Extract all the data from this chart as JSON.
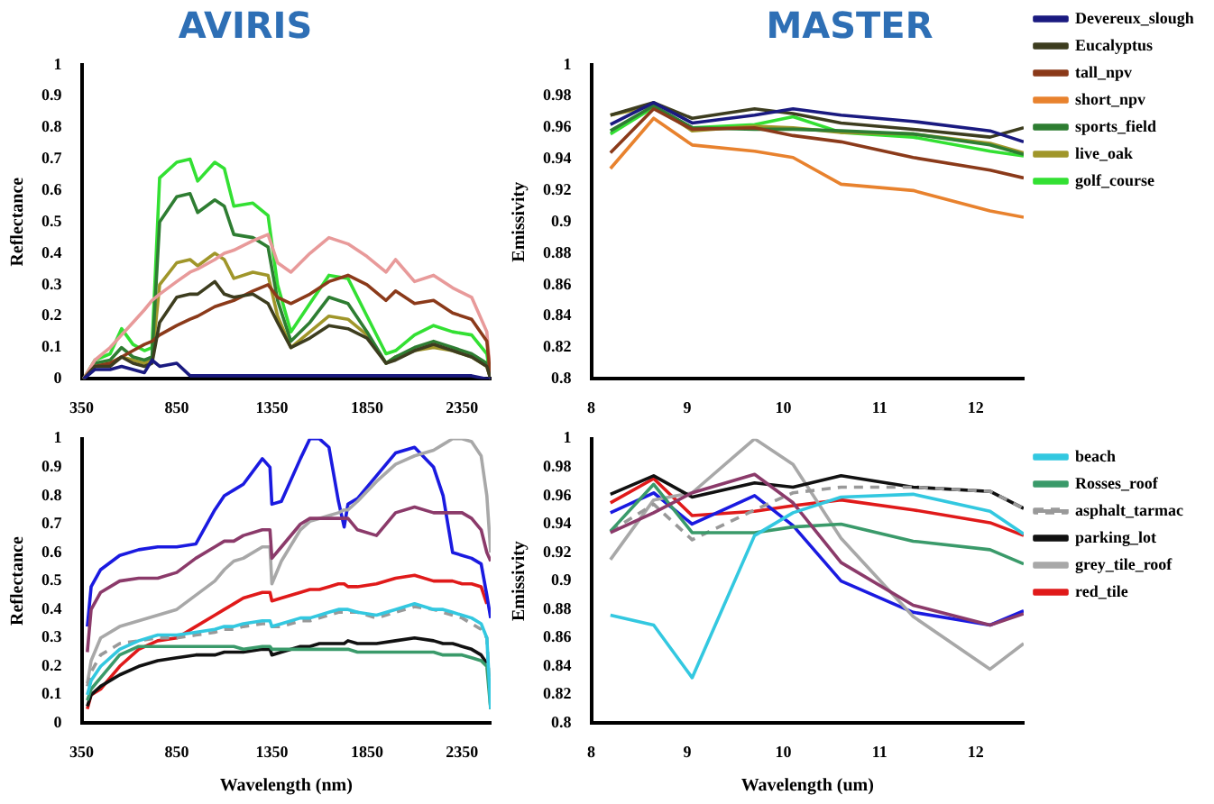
{
  "chart_data": [
    {
      "type": "line",
      "title": "AVIRIS",
      "ylabel": "Reflectance",
      "xlim": [
        350,
        2500
      ],
      "xticks": [
        350,
        850,
        1350,
        1850,
        2350
      ],
      "ylim": [
        0,
        1
      ],
      "yticks": [
        0,
        0.1,
        0.2,
        0.3,
        0.4,
        0.5,
        0.6,
        0.7,
        0.8,
        0.9,
        1
      ],
      "grid": false,
      "legend": false,
      "marker": "none",
      "x": [
        360,
        420,
        500,
        560,
        620,
        680,
        720,
        760,
        850,
        920,
        960,
        1050,
        1100,
        1150,
        1250,
        1330,
        1380,
        1450,
        1550,
        1650,
        1750,
        1850,
        1950,
        2000,
        2100,
        2200,
        2300,
        2400,
        2480,
        2500
      ],
      "series": [
        {
          "color": "#1a1a80",
          "values": [
            0,
            0.03,
            0.03,
            0.04,
            0.03,
            0.02,
            0.06,
            0.04,
            0.05,
            0.01,
            0.01,
            0.01,
            0.01,
            0.01,
            0.01,
            0.01,
            0.01,
            0.01,
            0.01,
            0.01,
            0.01,
            0.01,
            0.01,
            0.01,
            0.01,
            0.01,
            0.01,
            0.01,
            0,
            0
          ]
        },
        {
          "color": "#3d3d1f",
          "values": [
            0,
            0.04,
            0.04,
            0.07,
            0.05,
            0.04,
            0.05,
            0.18,
            0.26,
            0.27,
            0.27,
            0.31,
            0.27,
            0.26,
            0.27,
            0.24,
            0.18,
            0.1,
            0.13,
            0.17,
            0.16,
            0.13,
            0.05,
            0.06,
            0.09,
            0.11,
            0.09,
            0.07,
            0.04,
            0
          ]
        },
        {
          "color": "#8b3a1a",
          "values": [
            0,
            0.04,
            0.05,
            0.07,
            0.09,
            0.11,
            0.12,
            0.14,
            0.17,
            0.19,
            0.2,
            0.23,
            0.24,
            0.25,
            0.28,
            0.3,
            0.26,
            0.24,
            0.27,
            0.31,
            0.33,
            0.3,
            0.25,
            0.28,
            0.24,
            0.25,
            0.21,
            0.19,
            0.12,
            0
          ]
        },
        {
          "color": "#e89a9a",
          "values": [
            0,
            0.06,
            0.1,
            0.14,
            0.18,
            0.22,
            0.25,
            0.27,
            0.31,
            0.34,
            0.35,
            0.38,
            0.4,
            0.41,
            0.44,
            0.46,
            0.37,
            0.34,
            0.4,
            0.45,
            0.43,
            0.39,
            0.34,
            0.38,
            0.31,
            0.33,
            0.29,
            0.26,
            0.15,
            0
          ]
        },
        {
          "color": "#2e7d32",
          "values": [
            0,
            0.05,
            0.06,
            0.1,
            0.07,
            0.06,
            0.07,
            0.5,
            0.58,
            0.59,
            0.53,
            0.57,
            0.55,
            0.46,
            0.45,
            0.42,
            0.25,
            0.12,
            0.18,
            0.26,
            0.24,
            0.15,
            0.05,
            0.07,
            0.1,
            0.12,
            0.1,
            0.08,
            0.05,
            0
          ]
        },
        {
          "color": "#a0962a",
          "values": [
            0,
            0.04,
            0.05,
            0.07,
            0.06,
            0.05,
            0.06,
            0.3,
            0.37,
            0.38,
            0.36,
            0.4,
            0.38,
            0.32,
            0.34,
            0.33,
            0.2,
            0.1,
            0.15,
            0.2,
            0.19,
            0.14,
            0.05,
            0.07,
            0.09,
            0.1,
            0.09,
            0.07,
            0.04,
            0
          ]
        },
        {
          "color": "#33e033",
          "values": [
            0,
            0.06,
            0.08,
            0.16,
            0.11,
            0.09,
            0.1,
            0.64,
            0.69,
            0.7,
            0.63,
            0.69,
            0.67,
            0.55,
            0.56,
            0.52,
            0.3,
            0.15,
            0.24,
            0.33,
            0.32,
            0.2,
            0.08,
            0.09,
            0.14,
            0.17,
            0.15,
            0.14,
            0.08,
            0
          ]
        }
      ]
    },
    {
      "type": "line",
      "title": "MASTER",
      "ylabel": "Emissivity",
      "xlim": [
        8,
        12.5
      ],
      "xticks": [
        8,
        9,
        10,
        11,
        12
      ],
      "ylim": [
        0.8,
        1
      ],
      "yticks": [
        0.8,
        0.82,
        0.84,
        0.86,
        0.88,
        0.9,
        0.92,
        0.94,
        0.96,
        0.98,
        1
      ],
      "grid": false,
      "legend": "right",
      "marker": "none",
      "x": [
        8.2,
        8.65,
        9.05,
        9.7,
        10.1,
        10.6,
        11.35,
        12.15,
        12.5
      ],
      "series": [
        {
          "name": "Devereux_slough",
          "color": "#1a1a80",
          "values": [
            0.962,
            0.976,
            0.963,
            0.968,
            0.972,
            0.968,
            0.964,
            0.958,
            0.951
          ]
        },
        {
          "name": "Eucalyptus",
          "color": "#3d3d1f",
          "values": [
            0.968,
            0.976,
            0.966,
            0.972,
            0.969,
            0.963,
            0.959,
            0.954,
            0.96
          ]
        },
        {
          "name": "tall_npv",
          "color": "#8b3a1a",
          "values": [
            0.944,
            0.972,
            0.959,
            0.96,
            0.955,
            0.951,
            0.941,
            0.933,
            0.928
          ]
        },
        {
          "name": "short_npv",
          "color": "#e8822e",
          "values": [
            0.934,
            0.966,
            0.949,
            0.945,
            0.941,
            0.924,
            0.92,
            0.907,
            0.903
          ]
        },
        {
          "name": "sports_field",
          "color": "#2e7d32",
          "values": [
            0.958,
            0.974,
            0.96,
            0.959,
            0.959,
            0.958,
            0.956,
            0.949,
            0.943
          ]
        },
        {
          "name": "live_oak",
          "color": "#a0962a",
          "values": [
            0.968,
            0.974,
            0.958,
            0.961,
            0.96,
            0.957,
            0.956,
            0.95,
            0.944
          ]
        },
        {
          "name": "golf_course",
          "color": "#33e033",
          "values": [
            0.956,
            0.973,
            0.96,
            0.962,
            0.967,
            0.957,
            0.954,
            0.945,
            0.942
          ]
        }
      ]
    },
    {
      "type": "line",
      "xlabel": "Wavelength (nm)",
      "ylabel": "Reflectance",
      "xlim": [
        350,
        2500
      ],
      "xticks": [
        350,
        850,
        1350,
        1850,
        2350
      ],
      "ylim": [
        0,
        1
      ],
      "yticks": [
        0,
        0.1,
        0.2,
        0.3,
        0.4,
        0.5,
        0.6,
        0.7,
        0.8,
        0.9,
        1
      ],
      "grid": false,
      "legend": false,
      "marker": "none",
      "x": [
        380,
        400,
        450,
        550,
        650,
        750,
        850,
        950,
        1050,
        1100,
        1150,
        1200,
        1300,
        1340,
        1350,
        1400,
        1500,
        1550,
        1600,
        1650,
        1700,
        1730,
        1750,
        1800,
        1900,
        2000,
        2100,
        2200,
        2250,
        2300,
        2350,
        2400,
        2450,
        2480,
        2500
      ],
      "series": [
        {
          "color": "#33c8e0",
          "values": [
            0.1,
            0.15,
            0.2,
            0.26,
            0.29,
            0.31,
            0.31,
            0.32,
            0.33,
            0.34,
            0.34,
            0.35,
            0.36,
            0.36,
            0.34,
            0.35,
            0.37,
            0.37,
            0.38,
            0.39,
            0.4,
            0.4,
            0.4,
            0.39,
            0.38,
            0.4,
            0.42,
            0.4,
            0.4,
            0.39,
            0.38,
            0.37,
            0.35,
            0.3,
            0.05
          ]
        },
        {
          "color": "#8b3a6a",
          "values": [
            0.25,
            0.4,
            0.46,
            0.5,
            0.51,
            0.51,
            0.53,
            0.58,
            0.62,
            0.64,
            0.64,
            0.66,
            0.68,
            0.68,
            0.58,
            0.62,
            0.7,
            0.72,
            0.72,
            0.72,
            0.72,
            0.72,
            0.72,
            0.68,
            0.66,
            0.74,
            0.76,
            0.74,
            0.74,
            0.74,
            0.74,
            0.72,
            0.68,
            0.6,
            0.57
          ]
        },
        {
          "color": "#3a9a6a",
          "values": [
            0.08,
            0.12,
            0.16,
            0.24,
            0.27,
            0.27,
            0.27,
            0.27,
            0.27,
            0.27,
            0.27,
            0.26,
            0.27,
            0.27,
            0.26,
            0.26,
            0.26,
            0.26,
            0.26,
            0.26,
            0.26,
            0.26,
            0.26,
            0.25,
            0.25,
            0.25,
            0.25,
            0.25,
            0.24,
            0.24,
            0.24,
            0.23,
            0.22,
            0.2,
            0.05
          ]
        },
        {
          "color": "#999999",
          "line_style": "dashed",
          "values": [
            0.13,
            0.18,
            0.24,
            0.28,
            0.29,
            0.3,
            0.3,
            0.31,
            0.32,
            0.33,
            0.33,
            0.34,
            0.35,
            0.35,
            0.34,
            0.34,
            0.36,
            0.36,
            0.37,
            0.38,
            0.39,
            0.39,
            0.39,
            0.39,
            0.37,
            0.39,
            0.41,
            0.4,
            0.39,
            0.38,
            0.37,
            0.35,
            0.33,
            0.3,
            0.05
          ]
        },
        {
          "color": "#111111",
          "values": [
            0.06,
            0.1,
            0.13,
            0.17,
            0.2,
            0.22,
            0.23,
            0.24,
            0.24,
            0.25,
            0.25,
            0.25,
            0.26,
            0.26,
            0.24,
            0.25,
            0.27,
            0.27,
            0.28,
            0.28,
            0.28,
            0.28,
            0.29,
            0.28,
            0.28,
            0.29,
            0.3,
            0.29,
            0.28,
            0.28,
            0.27,
            0.26,
            0.24,
            0.21,
            null
          ]
        },
        {
          "color": "#a8a8a8",
          "values": [
            0.14,
            0.22,
            0.3,
            0.34,
            0.36,
            0.38,
            0.4,
            0.45,
            0.5,
            0.54,
            0.57,
            0.58,
            0.62,
            0.62,
            0.49,
            0.57,
            0.68,
            0.71,
            0.72,
            0.73,
            0.74,
            0.75,
            0.75,
            0.78,
            0.85,
            0.91,
            0.94,
            0.96,
            0.98,
            1,
            1,
            0.99,
            0.94,
            0.8,
            0.6
          ]
        },
        {
          "color": "#1a1ae0",
          "values": [
            0.34,
            0.48,
            0.54,
            0.59,
            0.61,
            0.62,
            0.62,
            0.63,
            0.75,
            0.8,
            0.82,
            0.84,
            0.93,
            0.9,
            0.77,
            0.78,
            0.93,
            1,
            1,
            0.97,
            0.78,
            0.69,
            0.77,
            0.79,
            0.87,
            0.95,
            0.97,
            0.9,
            0.8,
            0.6,
            0.59,
            0.58,
            0.56,
            0.45,
            0.37
          ]
        },
        {
          "color": "#e01a1a",
          "values": [
            0.05,
            0.1,
            0.12,
            0.2,
            0.26,
            0.29,
            0.3,
            0.34,
            0.38,
            0.4,
            0.42,
            0.44,
            0.46,
            0.46,
            0.43,
            0.44,
            0.46,
            0.47,
            0.47,
            0.48,
            0.49,
            0.49,
            0.48,
            0.48,
            0.49,
            0.51,
            0.52,
            0.5,
            0.5,
            0.5,
            0.49,
            0.49,
            0.48,
            0.42,
            null
          ]
        }
      ]
    },
    {
      "type": "line",
      "xlabel": "Wavelength (um)",
      "ylabel": "Emissivity",
      "xlim": [
        8,
        12.5
      ],
      "xticks": [
        8,
        9,
        10,
        11,
        12
      ],
      "ylim": [
        0.8,
        1
      ],
      "yticks": [
        0.8,
        0.82,
        0.84,
        0.86,
        0.88,
        0.9,
        0.92,
        0.94,
        0.96,
        0.98,
        1
      ],
      "grid": false,
      "legend": "right",
      "marker": "none",
      "x": [
        8.2,
        8.65,
        9.05,
        9.7,
        10.1,
        10.6,
        11.35,
        12.15,
        12.5
      ],
      "series": [
        {
          "name": "beach",
          "color": "#33c8e0",
          "values": [
            0.876,
            0.869,
            0.832,
            0.932,
            0.948,
            0.959,
            0.961,
            0.949,
            0.933
          ]
        },
        {
          "color": "#8b3a6a",
          "values": [
            0.934,
            0.948,
            0.962,
            0.975,
            0.955,
            0.913,
            0.883,
            0.869,
            0.877
          ]
        },
        {
          "name": "Rosses_roof",
          "color": "#3a9a6a",
          "values": [
            0.935,
            0.968,
            0.934,
            0.934,
            0.938,
            0.94,
            0.928,
            0.922,
            0.912
          ]
        },
        {
          "name": "asphalt_tarmac",
          "color": "#999999",
          "line_style": "dashed",
          "values": [
            0.935,
            0.954,
            0.929,
            0.95,
            0.962,
            0.966,
            0.966,
            0.963,
            0.951
          ]
        },
        {
          "name": "parking_lot",
          "color": "#111111",
          "values": [
            0.961,
            0.974,
            0.959,
            0.969,
            0.966,
            0.974,
            0.966,
            0.963,
            0.951
          ]
        },
        {
          "name": "grey_tile_roof",
          "color": "#a8a8a8",
          "values": [
            0.915,
            0.957,
            0.962,
            1,
            0.982,
            0.93,
            0.875,
            0.838,
            0.856
          ]
        },
        {
          "color": "#1a1ae0",
          "values": [
            0.948,
            0.962,
            0.94,
            0.96,
            0.939,
            0.9,
            0.878,
            0.869,
            0.879
          ]
        },
        {
          "name": "red_tile",
          "color": "#e01a1a",
          "values": [
            0.955,
            0.972,
            0.946,
            0.949,
            0.953,
            0.957,
            0.95,
            0.941,
            0.932
          ]
        }
      ]
    }
  ]
}
